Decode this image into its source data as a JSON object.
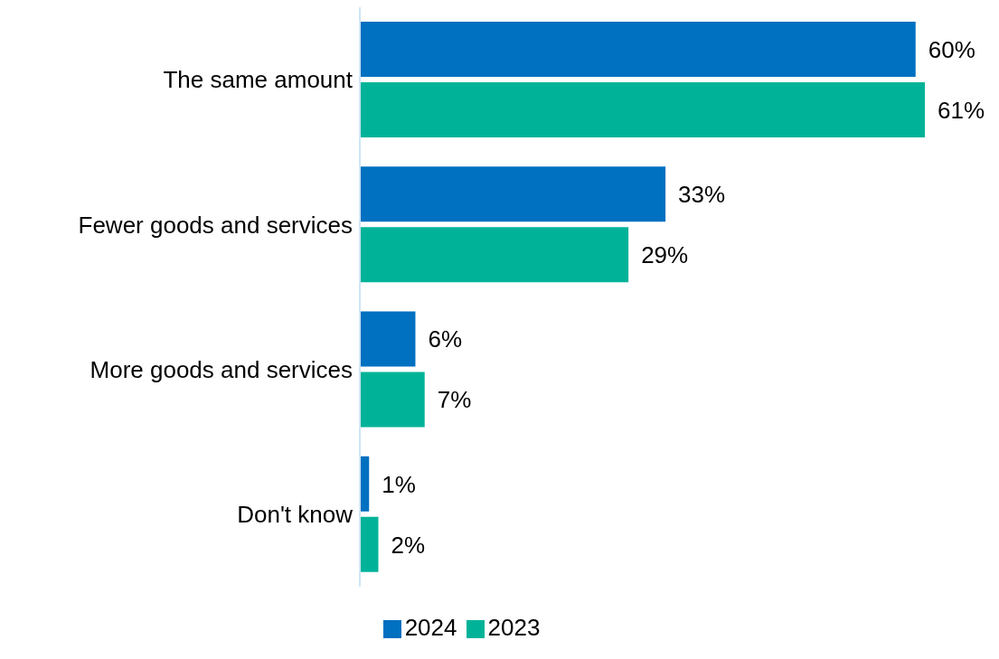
{
  "chart_data": {
    "type": "bar",
    "orientation": "horizontal",
    "categories": [
      "The same amount",
      "Fewer goods and services",
      "More goods and services",
      "Don't know"
    ],
    "series": [
      {
        "name": "2024",
        "color": "#0070c0",
        "values": [
          60,
          33,
          6,
          1
        ],
        "value_labels": [
          "60%",
          "33%",
          "6%",
          "1%"
        ]
      },
      {
        "name": "2023",
        "color": "#00b398",
        "values": [
          61,
          29,
          7,
          2
        ],
        "value_labels": [
          "61%",
          "29%",
          "7%",
          "2%"
        ]
      }
    ],
    "legend": "bottom",
    "grid": false
  }
}
